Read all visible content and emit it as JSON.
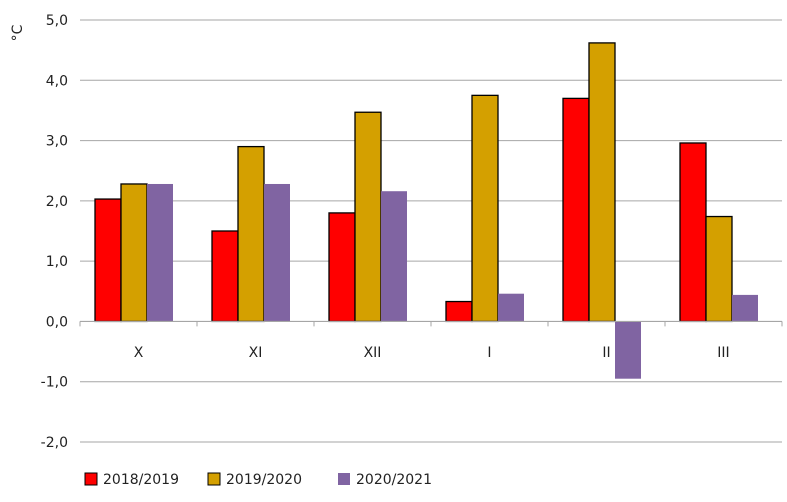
{
  "chart_data": {
    "type": "bar",
    "ylabel": "°C",
    "ylim": [
      -2.0,
      5.0
    ],
    "yticks": [
      5.0,
      4.0,
      3.0,
      2.0,
      1.0,
      0.0,
      -1.0,
      -2.0
    ],
    "ytick_labels": [
      "5,0",
      "4,0",
      "3,0",
      "2,0",
      "1,0",
      "0,0",
      "-1,0",
      "-2,0"
    ],
    "categories": [
      "X",
      "XI",
      "XII",
      "I",
      "II",
      "III"
    ],
    "grid": true,
    "legend_position": "bottom-left",
    "series": [
      {
        "name": "2018/2019",
        "color": "#ff0000",
        "outlined": true,
        "values": [
          2.03,
          1.5,
          1.8,
          0.33,
          3.7,
          2.96
        ]
      },
      {
        "name": "2019/2020",
        "color": "#d4a000",
        "outlined": true,
        "values": [
          2.28,
          2.9,
          3.47,
          3.75,
          4.62,
          1.74
        ]
      },
      {
        "name": "2020/2021",
        "color": "#8064a2",
        "outlined": false,
        "values": [
          2.28,
          2.28,
          2.16,
          0.46,
          -0.95,
          0.44
        ]
      }
    ]
  }
}
